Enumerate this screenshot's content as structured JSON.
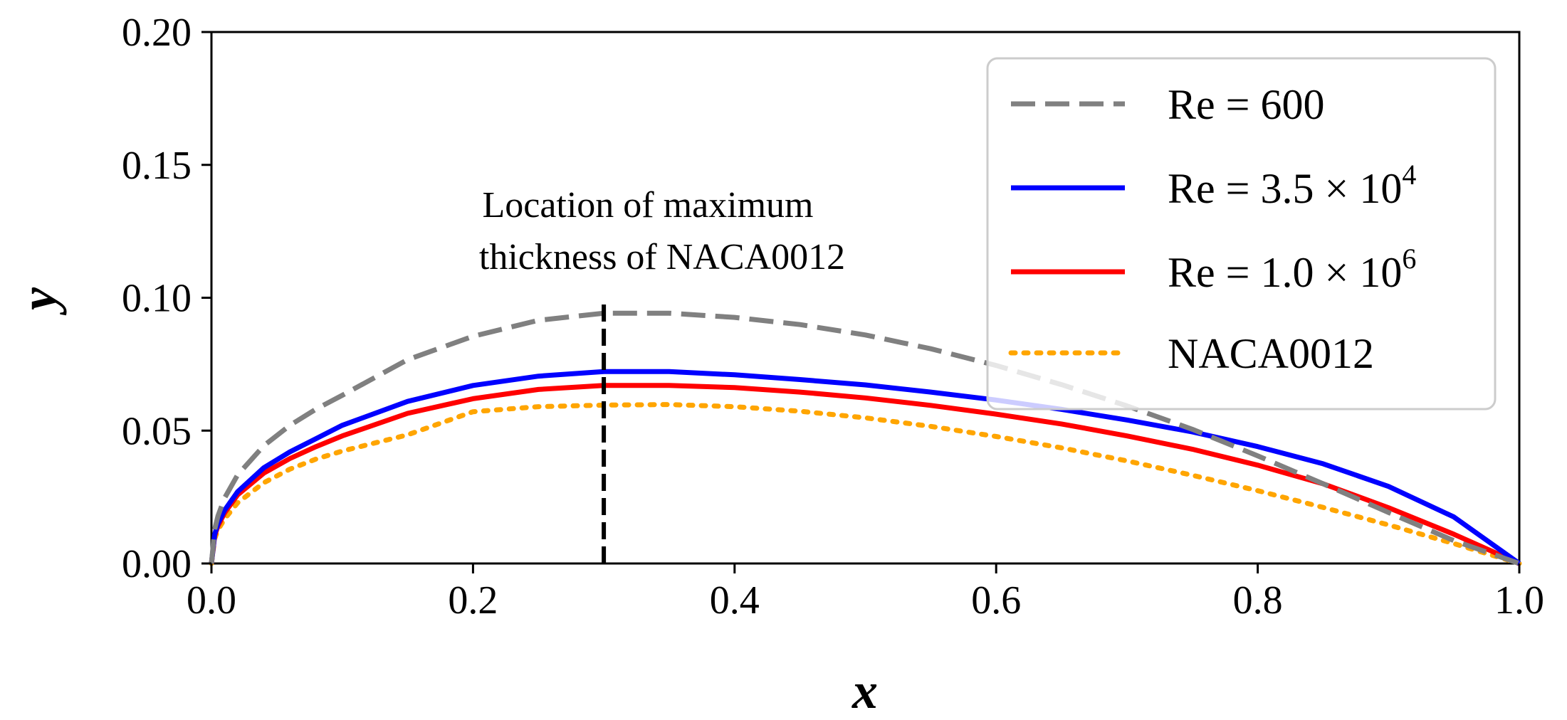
{
  "chart_data": {
    "type": "line",
    "title": "",
    "xlabel": "x",
    "ylabel": "y",
    "xlim": [
      0.0,
      1.0
    ],
    "ylim": [
      0.0,
      0.2
    ],
    "grid": false,
    "xticks": [
      0.0,
      0.2,
      0.4,
      0.6,
      0.8,
      1.0
    ],
    "xtick_labels": [
      "0.0",
      "0.2",
      "0.4",
      "0.6",
      "0.8",
      "1.0"
    ],
    "yticks": [
      0.0,
      0.05,
      0.1,
      0.15,
      0.2
    ],
    "ytick_labels": [
      "0.00",
      "0.05",
      "0.10",
      "0.15",
      "0.20"
    ],
    "legend_position": "top-right",
    "series": [
      {
        "name": "Re = 600",
        "legend_main": "Re = 600",
        "legend_sup": "",
        "color": "#808080",
        "style": "dashed",
        "x": [
          0,
          0.0025,
          0.005,
          0.01,
          0.02,
          0.04,
          0.06,
          0.08,
          0.1,
          0.15,
          0.2,
          0.25,
          0.3,
          0.35,
          0.4,
          0.45,
          0.5,
          0.55,
          0.6,
          0.65,
          0.7,
          0.75,
          0.8,
          0.85,
          0.9,
          0.95,
          1.0
        ],
        "y": [
          0,
          0.0129,
          0.0179,
          0.0246,
          0.0333,
          0.0443,
          0.052,
          0.0581,
          0.0633,
          0.0767,
          0.0855,
          0.0915,
          0.0942,
          0.0942,
          0.0926,
          0.0899,
          0.086,
          0.0808,
          0.0745,
          0.0673,
          0.0593,
          0.0505,
          0.0405,
          0.03,
          0.0192,
          0.0086,
          0.0
        ]
      },
      {
        "name": "Re = 3.5 × 10^4",
        "legend_main": "Re = 3.5 × 10",
        "legend_sup": "4",
        "color": "#0000ff",
        "style": "solid",
        "x": [
          0,
          0.0025,
          0.005,
          0.01,
          0.02,
          0.04,
          0.06,
          0.08,
          0.1,
          0.15,
          0.2,
          0.25,
          0.3,
          0.35,
          0.4,
          0.45,
          0.5,
          0.55,
          0.6,
          0.65,
          0.7,
          0.75,
          0.8,
          0.85,
          0.9,
          0.95,
          1.0
        ],
        "y": [
          0,
          0.011,
          0.015,
          0.02,
          0.027,
          0.036,
          0.042,
          0.047,
          0.052,
          0.061,
          0.067,
          0.0705,
          0.0722,
          0.0722,
          0.071,
          0.0692,
          0.0672,
          0.0645,
          0.0615,
          0.058,
          0.054,
          0.0495,
          0.044,
          0.0375,
          0.029,
          0.0175,
          0.0
        ]
      },
      {
        "name": "Re = 1.0 × 10^6",
        "legend_main": "Re = 1.0 × 10",
        "legend_sup": "6",
        "color": "#ff0000",
        "style": "solid",
        "x": [
          0,
          0.0025,
          0.005,
          0.01,
          0.02,
          0.04,
          0.06,
          0.08,
          0.1,
          0.15,
          0.2,
          0.25,
          0.3,
          0.35,
          0.4,
          0.45,
          0.5,
          0.55,
          0.6,
          0.65,
          0.7,
          0.75,
          0.8,
          0.85,
          0.9,
          0.95,
          1.0
        ],
        "y": [
          0,
          0.0105,
          0.0142,
          0.019,
          0.0258,
          0.034,
          0.0395,
          0.044,
          0.048,
          0.0565,
          0.062,
          0.0655,
          0.067,
          0.067,
          0.0662,
          0.0645,
          0.0623,
          0.0595,
          0.0562,
          0.0525,
          0.048,
          0.043,
          0.037,
          0.03,
          0.021,
          0.011,
          0.0
        ]
      },
      {
        "name": "NACA0012",
        "legend_main": "NACA0012",
        "legend_sup": "",
        "color": "#ffa500",
        "style": "dotted",
        "x": [
          0,
          0.0025,
          0.005,
          0.01,
          0.02,
          0.04,
          0.06,
          0.08,
          0.1,
          0.15,
          0.2,
          0.25,
          0.3,
          0.35,
          0.4,
          0.45,
          0.5,
          0.55,
          0.6,
          0.65,
          0.7,
          0.75,
          0.8,
          0.85,
          0.9,
          0.95,
          1.0
        ],
        "y": [
          0,
          0.0094,
          0.0127,
          0.0167,
          0.0228,
          0.0304,
          0.0355,
          0.0393,
          0.0423,
          0.0484,
          0.0571,
          0.059,
          0.0596,
          0.0598,
          0.059,
          0.0573,
          0.0548,
          0.0516,
          0.0478,
          0.0435,
          0.0386,
          0.0332,
          0.0274,
          0.0211,
          0.0145,
          0.0075,
          0.0
        ]
      }
    ],
    "vline": {
      "x": 0.3,
      "y_top": 0.1,
      "color": "#000000",
      "style": "dashed"
    },
    "annotation": {
      "lines": [
        "Location of maximum",
        "thickness of NACA0012"
      ]
    }
  }
}
